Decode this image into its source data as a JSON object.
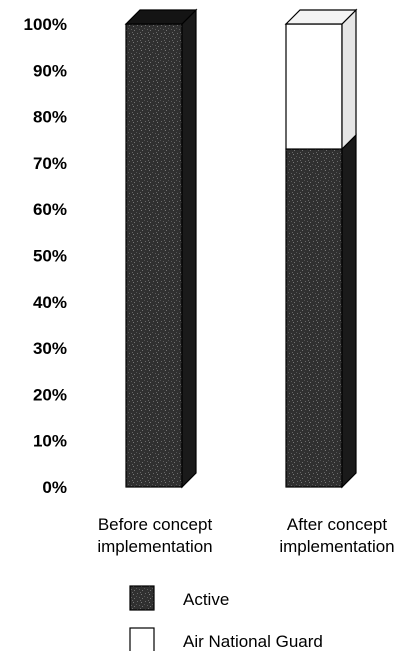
{
  "chart_data": {
    "type": "bar",
    "stacked": true,
    "style": "3d-column",
    "categories": [
      "Before concept implementation",
      "After concept implementation"
    ],
    "category_labels": [
      [
        "Before concept",
        "implementation"
      ],
      [
        "After concept",
        "implementation"
      ]
    ],
    "series": [
      {
        "name": "Active",
        "values": [
          100,
          73
        ],
        "color": "#2b2b2b",
        "pattern": "speckled"
      },
      {
        "name": "Air National Guard",
        "values": [
          0,
          27
        ],
        "color": "#ffffff"
      }
    ],
    "ylim": [
      0,
      100
    ],
    "y_ticks": [
      "0%",
      "10%",
      "20%",
      "30%",
      "40%",
      "50%",
      "60%",
      "70%",
      "80%",
      "90%",
      "100%"
    ],
    "title": "",
    "xlabel": "",
    "ylabel": "",
    "grid": false,
    "legend": "bottom-center"
  }
}
